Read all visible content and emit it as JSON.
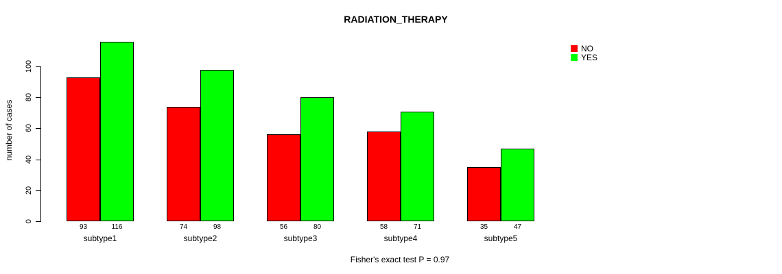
{
  "chart": {
    "title": "RADIATION_THERAPY",
    "y_axis_label": "number of cases",
    "caption": "Fisher's exact test P = 0.97"
  },
  "colors": {
    "no": "#ff0000",
    "yes": "#00ff00",
    "axis": "#000000",
    "background": "#ffffff"
  },
  "chart_data": {
    "type": "bar",
    "title": "RADIATION_THERAPY",
    "categories": [
      "subtype1",
      "subtype2",
      "subtype3",
      "subtype4",
      "subtype5"
    ],
    "series": [
      {
        "name": "NO",
        "color": "#ff0000",
        "values": [
          93,
          74,
          56,
          58,
          35
        ]
      },
      {
        "name": "YES",
        "color": "#00ff00",
        "values": [
          116,
          98,
          80,
          71,
          47
        ]
      }
    ],
    "xlabel": "",
    "ylabel": "number of cases",
    "ylim": [
      0,
      100
    ],
    "yticks": [
      0,
      20,
      40,
      60,
      80,
      100
    ],
    "bar_value_labels": true,
    "grid": false,
    "legend_position": "top-right",
    "annotation": "Fisher's exact test P = 0.97"
  }
}
